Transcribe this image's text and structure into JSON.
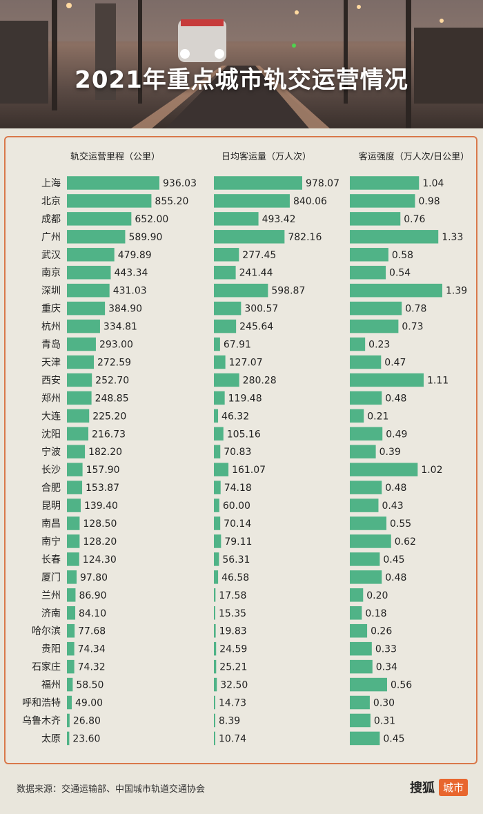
{
  "title": "2021年重点城市轨交运营情况",
  "footer": {
    "source": "数据来源：交通运输部、中国城市轨道交通协会"
  },
  "brand": {
    "sohu": "搜狐",
    "city": "城市"
  },
  "colors": {
    "bar": "#50b387",
    "border": "#d9784a",
    "accent": "#e8662e"
  },
  "chart_data": {
    "type": "bar",
    "categories": [
      "上海",
      "北京",
      "成都",
      "广州",
      "武汉",
      "南京",
      "深圳",
      "重庆",
      "杭州",
      "青岛",
      "天津",
      "西安",
      "郑州",
      "大连",
      "沈阳",
      "宁波",
      "长沙",
      "合肥",
      "昆明",
      "南昌",
      "南宁",
      "长春",
      "厦门",
      "兰州",
      "济南",
      "哈尔滨",
      "贵阳",
      "石家庄",
      "福州",
      "呼和浩特",
      "乌鲁木齐",
      "太原"
    ],
    "series": [
      {
        "name": "轨交运营里程（公里）",
        "max": 936.03,
        "decimals": 2,
        "values": [
          936.03,
          855.2,
          652.0,
          589.9,
          479.89,
          443.34,
          431.03,
          384.9,
          334.81,
          293.0,
          272.59,
          252.7,
          248.85,
          225.2,
          216.73,
          182.2,
          157.9,
          153.87,
          139.4,
          128.5,
          128.2,
          124.3,
          97.8,
          86.9,
          84.1,
          77.68,
          74.34,
          74.32,
          58.5,
          49.0,
          26.8,
          23.6
        ]
      },
      {
        "name": "日均客运量（万人次）",
        "max": 978.07,
        "decimals": 2,
        "values": [
          978.07,
          840.06,
          493.42,
          782.16,
          277.45,
          241.44,
          598.87,
          300.57,
          245.64,
          67.91,
          127.07,
          280.28,
          119.48,
          46.32,
          105.16,
          70.83,
          161.07,
          74.18,
          60.0,
          70.14,
          79.11,
          56.31,
          46.58,
          17.58,
          15.35,
          19.83,
          24.59,
          25.21,
          32.5,
          14.73,
          8.39,
          10.74
        ]
      },
      {
        "name": "客运强度（万人次/日公里）",
        "max": 1.39,
        "decimals": 2,
        "values": [
          1.04,
          0.98,
          0.76,
          1.33,
          0.58,
          0.54,
          1.39,
          0.78,
          0.73,
          0.23,
          0.47,
          1.11,
          0.48,
          0.21,
          0.49,
          0.39,
          1.02,
          0.48,
          0.43,
          0.55,
          0.62,
          0.45,
          0.48,
          0.2,
          0.18,
          0.26,
          0.33,
          0.34,
          0.56,
          0.3,
          0.31,
          0.45
        ]
      }
    ]
  }
}
